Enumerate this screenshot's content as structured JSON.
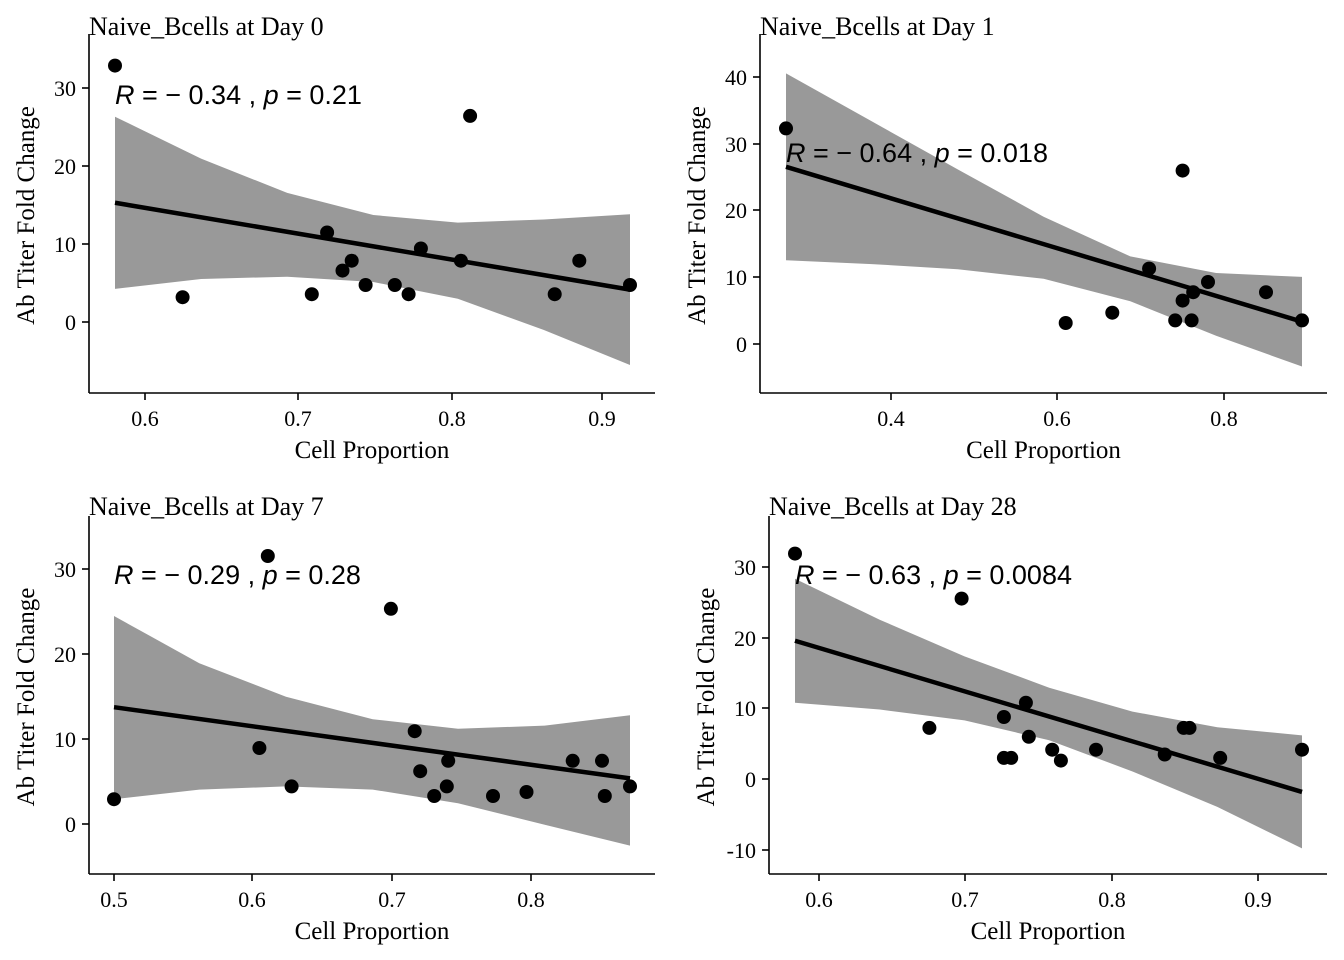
{
  "chart_data": [
    {
      "type": "scatter",
      "title": "Naive_Bcells at Day 0",
      "xlabel": "Cell Proportion",
      "ylabel": "Ab Titer Fold Change",
      "xlim": [
        0.585,
        0.92
      ],
      "ylim": [
        -9,
        33
      ],
      "xticks": [
        0.6,
        0.7,
        0.8,
        0.9
      ],
      "xtick_labels": [
        "0.6",
        "0.7",
        "0.8",
        "0.9"
      ],
      "yticks": [
        0,
        10,
        20,
        30
      ],
      "ytick_labels": [
        "0",
        "10",
        "20",
        "30"
      ],
      "annotation": {
        "r_label": "R",
        "r_value": " = − 0.34 , ",
        "p_label": "p",
        "p_value": " = 0.21"
      },
      "points": [
        {
          "x": 0.585,
          "y": 32
        },
        {
          "x": 0.629,
          "y": 1.6
        },
        {
          "x": 0.713,
          "y": 2.0
        },
        {
          "x": 0.723,
          "y": 10.1
        },
        {
          "x": 0.733,
          "y": 5.1
        },
        {
          "x": 0.739,
          "y": 6.4
        },
        {
          "x": 0.748,
          "y": 3.2
        },
        {
          "x": 0.767,
          "y": 3.2
        },
        {
          "x": 0.776,
          "y": 2.0
        },
        {
          "x": 0.784,
          "y": 8.0
        },
        {
          "x": 0.81,
          "y": 6.4
        },
        {
          "x": 0.816,
          "y": 25.4
        },
        {
          "x": 0.871,
          "y": 2.0
        },
        {
          "x": 0.887,
          "y": 6.4
        },
        {
          "x": 0.92,
          "y": 3.2
        }
      ],
      "fit": {
        "x0": 0.585,
        "y0": 14.0,
        "x1": 0.92,
        "y1": 2.6
      },
      "band": {
        "x": [
          0.585,
          0.641,
          0.697,
          0.753,
          0.808,
          0.864,
          0.92
        ],
        "upper": [
          25.3,
          19.8,
          15.3,
          12.4,
          11.4,
          11.8,
          12.5
        ],
        "lower": [
          2.7,
          4.0,
          4.3,
          3.6,
          1.4,
          -2.7,
          -7.3
        ]
      }
    },
    {
      "type": "scatter",
      "title": "Naive_Bcells at Day 1",
      "xlabel": "Cell Proportion",
      "ylabel": "Ab Titer Fold Change",
      "xlim": [
        0.262,
        0.893
      ],
      "ylim": [
        -7,
        43
      ],
      "xticks": [
        0.4,
        0.6,
        0.8
      ],
      "xtick_labels": [
        "0.4",
        "0.6",
        "0.8"
      ],
      "yticks": [
        0,
        10,
        20,
        30,
        40
      ],
      "ytick_labels": [
        "0",
        "10",
        "20",
        "30",
        "40"
      ],
      "annotation": {
        "r_label": "R",
        "r_value": " = − 0.64 , ",
        "p_label": "p",
        "p_value": " = 0.018"
      },
      "points": [
        {
          "x": 0.262,
          "y": 32
        },
        {
          "x": 0.604,
          "y": 1.6
        },
        {
          "x": 0.661,
          "y": 3.2
        },
        {
          "x": 0.706,
          "y": 10.1
        },
        {
          "x": 0.738,
          "y": 2.0
        },
        {
          "x": 0.747,
          "y": 5.1
        },
        {
          "x": 0.747,
          "y": 25.4
        },
        {
          "x": 0.758,
          "y": 2.0
        },
        {
          "x": 0.76,
          "y": 6.4
        },
        {
          "x": 0.778,
          "y": 8.0
        },
        {
          "x": 0.849,
          "y": 6.4
        },
        {
          "x": 0.893,
          "y": 2.0
        }
      ],
      "fit": {
        "x0": 0.262,
        "y0": 26.0,
        "x1": 0.893,
        "y1": 1.8
      },
      "band": {
        "x": [
          0.262,
          0.367,
          0.472,
          0.577,
          0.683,
          0.788,
          0.893
        ],
        "upper": [
          40.6,
          33.1,
          25.6,
          18.2,
          12.0,
          9.4,
          8.8
        ],
        "lower": [
          11.4,
          10.8,
          10.0,
          8.5,
          5.0,
          -0.4,
          -5.2
        ]
      }
    },
    {
      "type": "scatter",
      "title": "Naive_Bcells at Day 7",
      "xlabel": "Cell Proportion",
      "ylabel": "Ab Titer Fold Change",
      "xlim": [
        0.5,
        0.869
      ],
      "ylim": [
        -6,
        34
      ],
      "xticks": [
        0.5,
        0.6,
        0.7,
        0.8
      ],
      "xtick_labels": [
        "0.5",
        "0.6",
        "0.7",
        "0.8"
      ],
      "yticks": [
        0,
        10,
        20,
        30
      ],
      "ytick_labels": [
        "0",
        "10",
        "20",
        "30"
      ],
      "annotation": {
        "r_label": "R",
        "r_value": " = − 0.29 , ",
        "p_label": "p",
        "p_value": " = 0.28"
      },
      "points": [
        {
          "x": 0.5,
          "y": 1.6
        },
        {
          "x": 0.604,
          "y": 8.0
        },
        {
          "x": 0.61,
          "y": 32
        },
        {
          "x": 0.627,
          "y": 3.2
        },
        {
          "x": 0.698,
          "y": 25.4
        },
        {
          "x": 0.715,
          "y": 10.1
        },
        {
          "x": 0.719,
          "y": 5.1
        },
        {
          "x": 0.729,
          "y": 2.0
        },
        {
          "x": 0.738,
          "y": 3.2
        },
        {
          "x": 0.739,
          "y": 6.4
        },
        {
          "x": 0.771,
          "y": 2.0
        },
        {
          "x": 0.795,
          "y": 2.5
        },
        {
          "x": 0.828,
          "y": 6.4
        },
        {
          "x": 0.849,
          "y": 6.4
        },
        {
          "x": 0.851,
          "y": 2.0
        },
        {
          "x": 0.869,
          "y": 3.2
        }
      ],
      "fit": {
        "x0": 0.5,
        "y0": 13.1,
        "x1": 0.869,
        "y1": 4.2
      },
      "band": {
        "x": [
          0.5,
          0.561,
          0.623,
          0.685,
          0.746,
          0.808,
          0.869
        ],
        "upper": [
          24.5,
          18.6,
          14.4,
          11.6,
          10.4,
          10.8,
          12.1
        ],
        "lower": [
          1.6,
          2.8,
          3.2,
          2.8,
          1.1,
          -1.6,
          -4.2
        ]
      }
    },
    {
      "type": "scatter",
      "title": "Naive_Bcells at Day 28",
      "xlabel": "Cell Proportion",
      "ylabel": "Ab Titer Fold Change",
      "xlim": [
        0.583,
        0.93
      ],
      "ylim": [
        -13,
        34
      ],
      "xticks": [
        0.6,
        0.7,
        0.8,
        0.9
      ],
      "xtick_labels": [
        "0.6",
        "0.7",
        "0.8",
        "0.9"
      ],
      "yticks": [
        -10,
        0,
        10,
        20,
        30
      ],
      "ytick_labels": [
        "-10",
        "0",
        "10",
        "20",
        "30"
      ],
      "annotation": {
        "r_label": "R",
        "r_value": " = − 0.63 , ",
        "p_label": "p",
        "p_value": " = 0.0084"
      },
      "points": [
        {
          "x": 0.583,
          "y": 32
        },
        {
          "x": 0.675,
          "y": 6.4
        },
        {
          "x": 0.697,
          "y": 25.4
        },
        {
          "x": 0.726,
          "y": 8.0
        },
        {
          "x": 0.726,
          "y": 2.0
        },
        {
          "x": 0.731,
          "y": 2.0
        },
        {
          "x": 0.741,
          "y": 10.1
        },
        {
          "x": 0.743,
          "y": 5.1
        },
        {
          "x": 0.759,
          "y": 3.2
        },
        {
          "x": 0.765,
          "y": 1.6
        },
        {
          "x": 0.789,
          "y": 3.2
        },
        {
          "x": 0.836,
          "y": 2.5
        },
        {
          "x": 0.849,
          "y": 6.4
        },
        {
          "x": 0.853,
          "y": 6.4
        },
        {
          "x": 0.874,
          "y": 2.0
        },
        {
          "x": 0.93,
          "y": 3.2
        }
      ],
      "fit": {
        "x0": 0.583,
        "y0": 19.2,
        "x1": 0.93,
        "y1": -3.0
      },
      "band": {
        "x": [
          0.583,
          0.641,
          0.699,
          0.757,
          0.814,
          0.872,
          0.93
        ],
        "upper": [
          28.3,
          22.3,
          16.9,
          12.3,
          8.8,
          6.5,
          5.3
        ],
        "lower": [
          10.1,
          9.1,
          7.5,
          4.6,
          0.0,
          -5.2,
          -11.3
        ]
      }
    }
  ]
}
